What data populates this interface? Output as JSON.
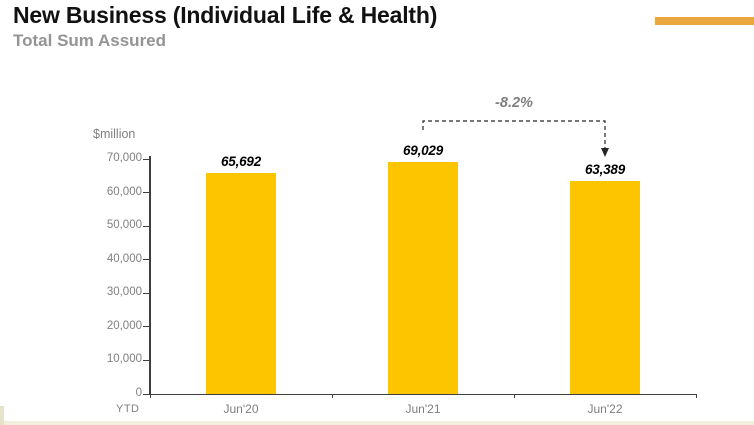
{
  "header": {
    "title": "New Business (Individual Life & Health)",
    "subtitle": "Total Sum Assured"
  },
  "chart_data": {
    "type": "bar",
    "title": "New Business (Individual Life & Health) — Total Sum Assured",
    "unit_label": "$million",
    "axis_note": "YTD",
    "categories": [
      "Jun'20",
      "Jun'21",
      "Jun'22"
    ],
    "values": [
      65692,
      69029,
      63389
    ],
    "value_labels": [
      "65,692",
      "69,029",
      "63,389"
    ],
    "ylim": [
      0,
      70000
    ],
    "ytick_step": 10000,
    "ytick_labels": [
      "0",
      "10,000",
      "20,000",
      "30,000",
      "40,000",
      "50,000",
      "60,000",
      "70,000"
    ],
    "grid": false,
    "legend": "none",
    "annotation": {
      "text": "-8.2%",
      "from_category": "Jun'21",
      "to_category": "Jun'22"
    }
  },
  "colors": {
    "bar": "#FDC400",
    "accent_bar": "#E9A73D",
    "axis": "#3F3F3F",
    "tick_label": "#808080",
    "subtitle": "#949494",
    "annotation_text": "#7F7F7F",
    "annotation_line": "#262626"
  }
}
